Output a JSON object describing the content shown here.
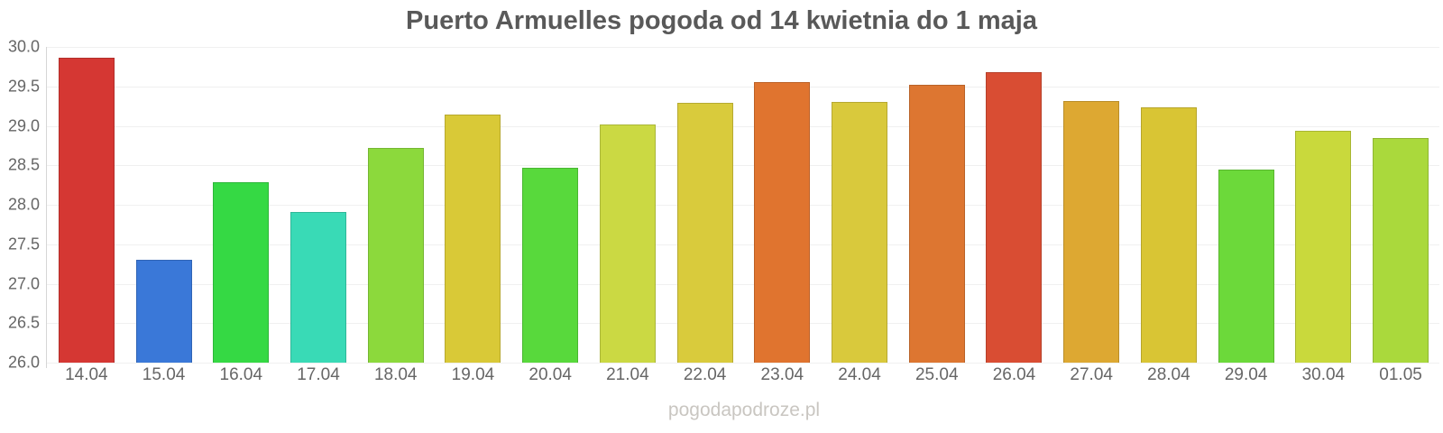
{
  "title": "Puerto Armuelles pogoda od 14 kwietnia do 1 maja",
  "watermark": "pogodapodroze.pl",
  "colors": {
    "background": "#ffffff",
    "title_text": "#595959",
    "axis_label_text": "#666666",
    "gridline": "#f0f0f0",
    "axis_line": "#d6d6d6",
    "watermark_text": "#c9c6c1"
  },
  "chart_data": {
    "type": "bar",
    "title": "Puerto Armuelles pogoda od 14 kwietnia do 1 maja",
    "xlabel": "",
    "ylabel": "",
    "categories": [
      "14.04",
      "15.04",
      "16.04",
      "17.04",
      "18.04",
      "19.04",
      "20.04",
      "21.04",
      "22.04",
      "23.04",
      "24.04",
      "25.04",
      "26.04",
      "27.04",
      "28.04",
      "29.04",
      "30.04",
      "01.05"
    ],
    "values": [
      29.86,
      27.3,
      28.29,
      27.91,
      28.72,
      29.14,
      28.47,
      29.02,
      29.29,
      29.56,
      29.3,
      29.52,
      29.68,
      29.32,
      29.23,
      28.45,
      28.94,
      28.85
    ],
    "bar_colors": [
      "#d53733",
      "#3a78d8",
      "#35d944",
      "#39dab6",
      "#8cd93c",
      "#d9c937",
      "#58d93c",
      "#cbd943",
      "#d9cb3c",
      "#e0742f",
      "#d9c93c",
      "#dd7631",
      "#d94d33",
      "#dda832",
      "#d9c534",
      "#6cd93a",
      "#c9d93c",
      "#aad93c"
    ],
    "ylim": [
      26.0,
      30.0
    ],
    "y_ticks": [
      30.0,
      29.5,
      29.0,
      28.5,
      28.0,
      27.5,
      27.0,
      26.5,
      26.0
    ],
    "grid": true,
    "legend": false
  }
}
